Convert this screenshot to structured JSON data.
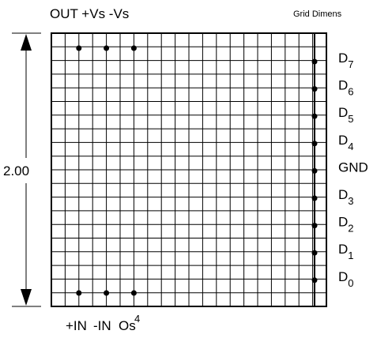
{
  "header": {
    "top_pins": "OUT +Vs -Vs",
    "corner_note": "Grid Dimens"
  },
  "dimension": {
    "label": "2.00"
  },
  "right_pins": [
    {
      "main": "D",
      "sub": "7"
    },
    {
      "main": "D",
      "sub": "6"
    },
    {
      "main": "D",
      "sub": "5"
    },
    {
      "main": "D",
      "sub": "4"
    },
    {
      "main": "GND"
    },
    {
      "main": "D",
      "sub": "3"
    },
    {
      "main": "D",
      "sub": "2"
    },
    {
      "main": "D",
      "sub": "1"
    },
    {
      "main": "D",
      "sub": "0"
    }
  ],
  "bottom_pins": {
    "labels": [
      "+IN",
      "-IN",
      "Os"
    ],
    "note": "4"
  }
}
